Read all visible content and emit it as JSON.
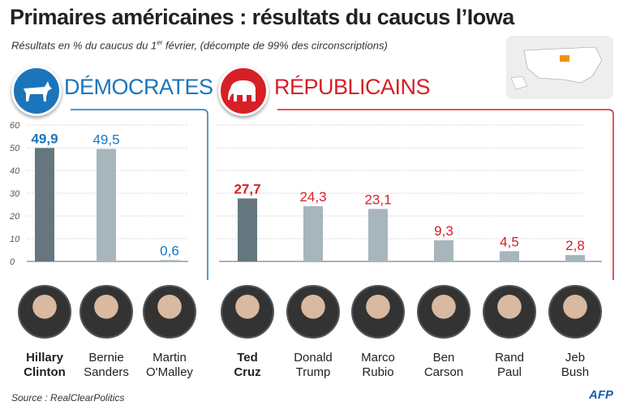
{
  "title": "Primaires américaines : résultats du caucus l’Iowa",
  "subtitle_main": "Résultats en % du caucus du 1",
  "subtitle_sup": "er",
  "subtitle_rest": " février, (décompte de 99% des circonscriptions)",
  "source": "Source : RealClearPolitics",
  "agency": "AFP",
  "colors": {
    "dem": "#1b75bb",
    "rep": "#d71f26",
    "winner_bar": "#66767e",
    "bar": "#a7b5bc"
  },
  "chart_data": [
    {
      "type": "bar",
      "title": "DÉMOCRATES",
      "categories": [
        "Hillary Clinton",
        "Bernie Sanders",
        "Martin O'Malley"
      ],
      "values": [
        49.9,
        49.5,
        0.6
      ],
      "data_labels": [
        "49,9",
        "49,5",
        "0,6"
      ],
      "ylim": [
        0,
        60
      ],
      "yticks": [
        0,
        10,
        20,
        30,
        40,
        50,
        60
      ],
      "grid": true
    },
    {
      "type": "bar",
      "title": "RÉPUBLICAINS",
      "categories": [
        "Ted Cruz",
        "Donald Trump",
        "Marco Rubio",
        "Ben Carson",
        "Rand Paul",
        "Jeb Bush"
      ],
      "values": [
        27.7,
        24.3,
        23.1,
        9.3,
        4.5,
        2.8
      ],
      "data_labels": [
        "27,7",
        "24,3",
        "23,1",
        "9,3",
        "4,5",
        "2,8"
      ],
      "ylim": [
        0,
        60
      ],
      "grid": true
    }
  ],
  "dem_names": [
    [
      "Hillary",
      "Clinton"
    ],
    [
      "Bernie",
      "Sanders"
    ],
    [
      "Martin",
      "O'Malley"
    ]
  ],
  "rep_names": [
    [
      "Ted",
      "Cruz"
    ],
    [
      "Donald",
      "Trump"
    ],
    [
      "Marco",
      "Rubio"
    ],
    [
      "Ben",
      "Carson"
    ],
    [
      "Rand",
      "Paul"
    ],
    [
      "Jeb",
      "Bush"
    ]
  ]
}
